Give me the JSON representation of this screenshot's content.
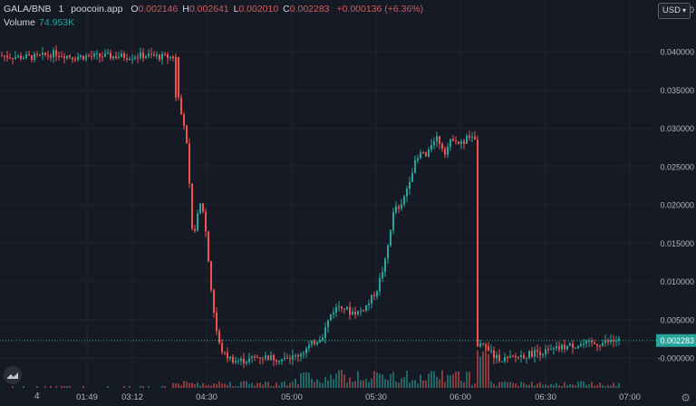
{
  "legend": {
    "symbol": "GALA/BNB",
    "interval": "1",
    "source": "poocoin.app",
    "open_label": "O",
    "open": "0.002146",
    "high_label": "H",
    "high": "0.002641",
    "low_label": "L",
    "low": "0.002010",
    "close_label": "C",
    "close": "0.002283",
    "change": "+0.000136 (+6.36%)"
  },
  "volume": {
    "label": "Volume",
    "value": "74.953K"
  },
  "currency": "USD",
  "bottom_left_label": "4",
  "colors": {
    "background": "#161a25",
    "up": "#26a69a",
    "down": "#ef5350",
    "grid": "#1f2430",
    "text": "#b2b5be"
  },
  "chart_data": {
    "type": "candlestick",
    "y_ticks": [
      "0.040000",
      "0.035000",
      "0.030000",
      "0.025000",
      "0.020000",
      "0.015000",
      "0.010000",
      "0.005000",
      "-0.000000"
    ],
    "y_top_partial": "0.045000",
    "last_price_label": "0.002283",
    "x_ticks": [
      "01:49",
      "03:12",
      "04:30",
      "05:00",
      "05:30",
      "06:00",
      "06:30",
      "07:00"
    ],
    "y_range": [
      -0.001,
      0.046
    ],
    "close_path": [
      [
        0,
        0.0395
      ],
      [
        20,
        0.0393
      ],
      [
        40,
        0.0393
      ],
      [
        60,
        0.0398
      ],
      [
        80,
        0.0393
      ],
      [
        100,
        0.0394
      ],
      [
        120,
        0.0394
      ],
      [
        140,
        0.0394
      ],
      [
        160,
        0.0395
      ],
      [
        180,
        0.0393
      ],
      [
        190,
        0.0393
      ],
      [
        196,
        0.033
      ],
      [
        200,
        0.032
      ],
      [
        204,
        0.029
      ],
      [
        207,
        0.025
      ],
      [
        210,
        0.017
      ],
      [
        212,
        0.016
      ],
      [
        216,
        0.018
      ],
      [
        220,
        0.02
      ],
      [
        224,
        0.019
      ],
      [
        228,
        0.014
      ],
      [
        232,
        0.009
      ],
      [
        236,
        0.005
      ],
      [
        240,
        0.002
      ],
      [
        246,
        0.0005
      ],
      [
        252,
        0.0
      ],
      [
        260,
        -0.0004
      ],
      [
        270,
        -0.0003
      ],
      [
        285,
        0.0002
      ],
      [
        300,
        0.0
      ],
      [
        315,
        -0.0002
      ],
      [
        325,
        0.0002
      ],
      [
        335,
        0.001
      ],
      [
        345,
        0.002
      ],
      [
        355,
        0.003
      ],
      [
        365,
        0.006
      ],
      [
        375,
        0.007
      ],
      [
        385,
        0.006
      ],
      [
        395,
        0.006
      ],
      [
        405,
        0.007
      ],
      [
        415,
        0.009
      ],
      [
        425,
        0.013
      ],
      [
        430,
        0.017
      ],
      [
        435,
        0.02
      ],
      [
        440,
        0.019
      ],
      [
        445,
        0.021
      ],
      [
        450,
        0.023
      ],
      [
        455,
        0.025
      ],
      [
        460,
        0.026
      ],
      [
        465,
        0.027
      ],
      [
        470,
        0.026
      ],
      [
        475,
        0.028
      ],
      [
        480,
        0.029
      ],
      [
        485,
        0.028
      ],
      [
        490,
        0.027
      ],
      [
        495,
        0.028
      ],
      [
        500,
        0.029
      ],
      [
        505,
        0.028
      ],
      [
        510,
        0.028
      ],
      [
        515,
        0.029
      ],
      [
        520,
        0.0285
      ],
      [
        524,
        0.0285
      ],
      [
        527,
        0.003
      ],
      [
        530,
        0.001
      ],
      [
        535,
        0.002
      ],
      [
        540,
        0.001
      ],
      [
        545,
        0.0
      ],
      [
        550,
        0.0
      ],
      [
        560,
        -0.0002
      ],
      [
        570,
        0.0002
      ],
      [
        580,
        0.0004
      ],
      [
        590,
        0.0008
      ],
      [
        600,
        0.0008
      ],
      [
        610,
        0.001
      ],
      [
        620,
        0.0014
      ],
      [
        630,
        0.0016
      ],
      [
        640,
        0.0018
      ],
      [
        650,
        0.0018
      ],
      [
        660,
        0.0019
      ],
      [
        670,
        0.0021
      ],
      [
        680,
        0.0023
      ]
    ]
  }
}
